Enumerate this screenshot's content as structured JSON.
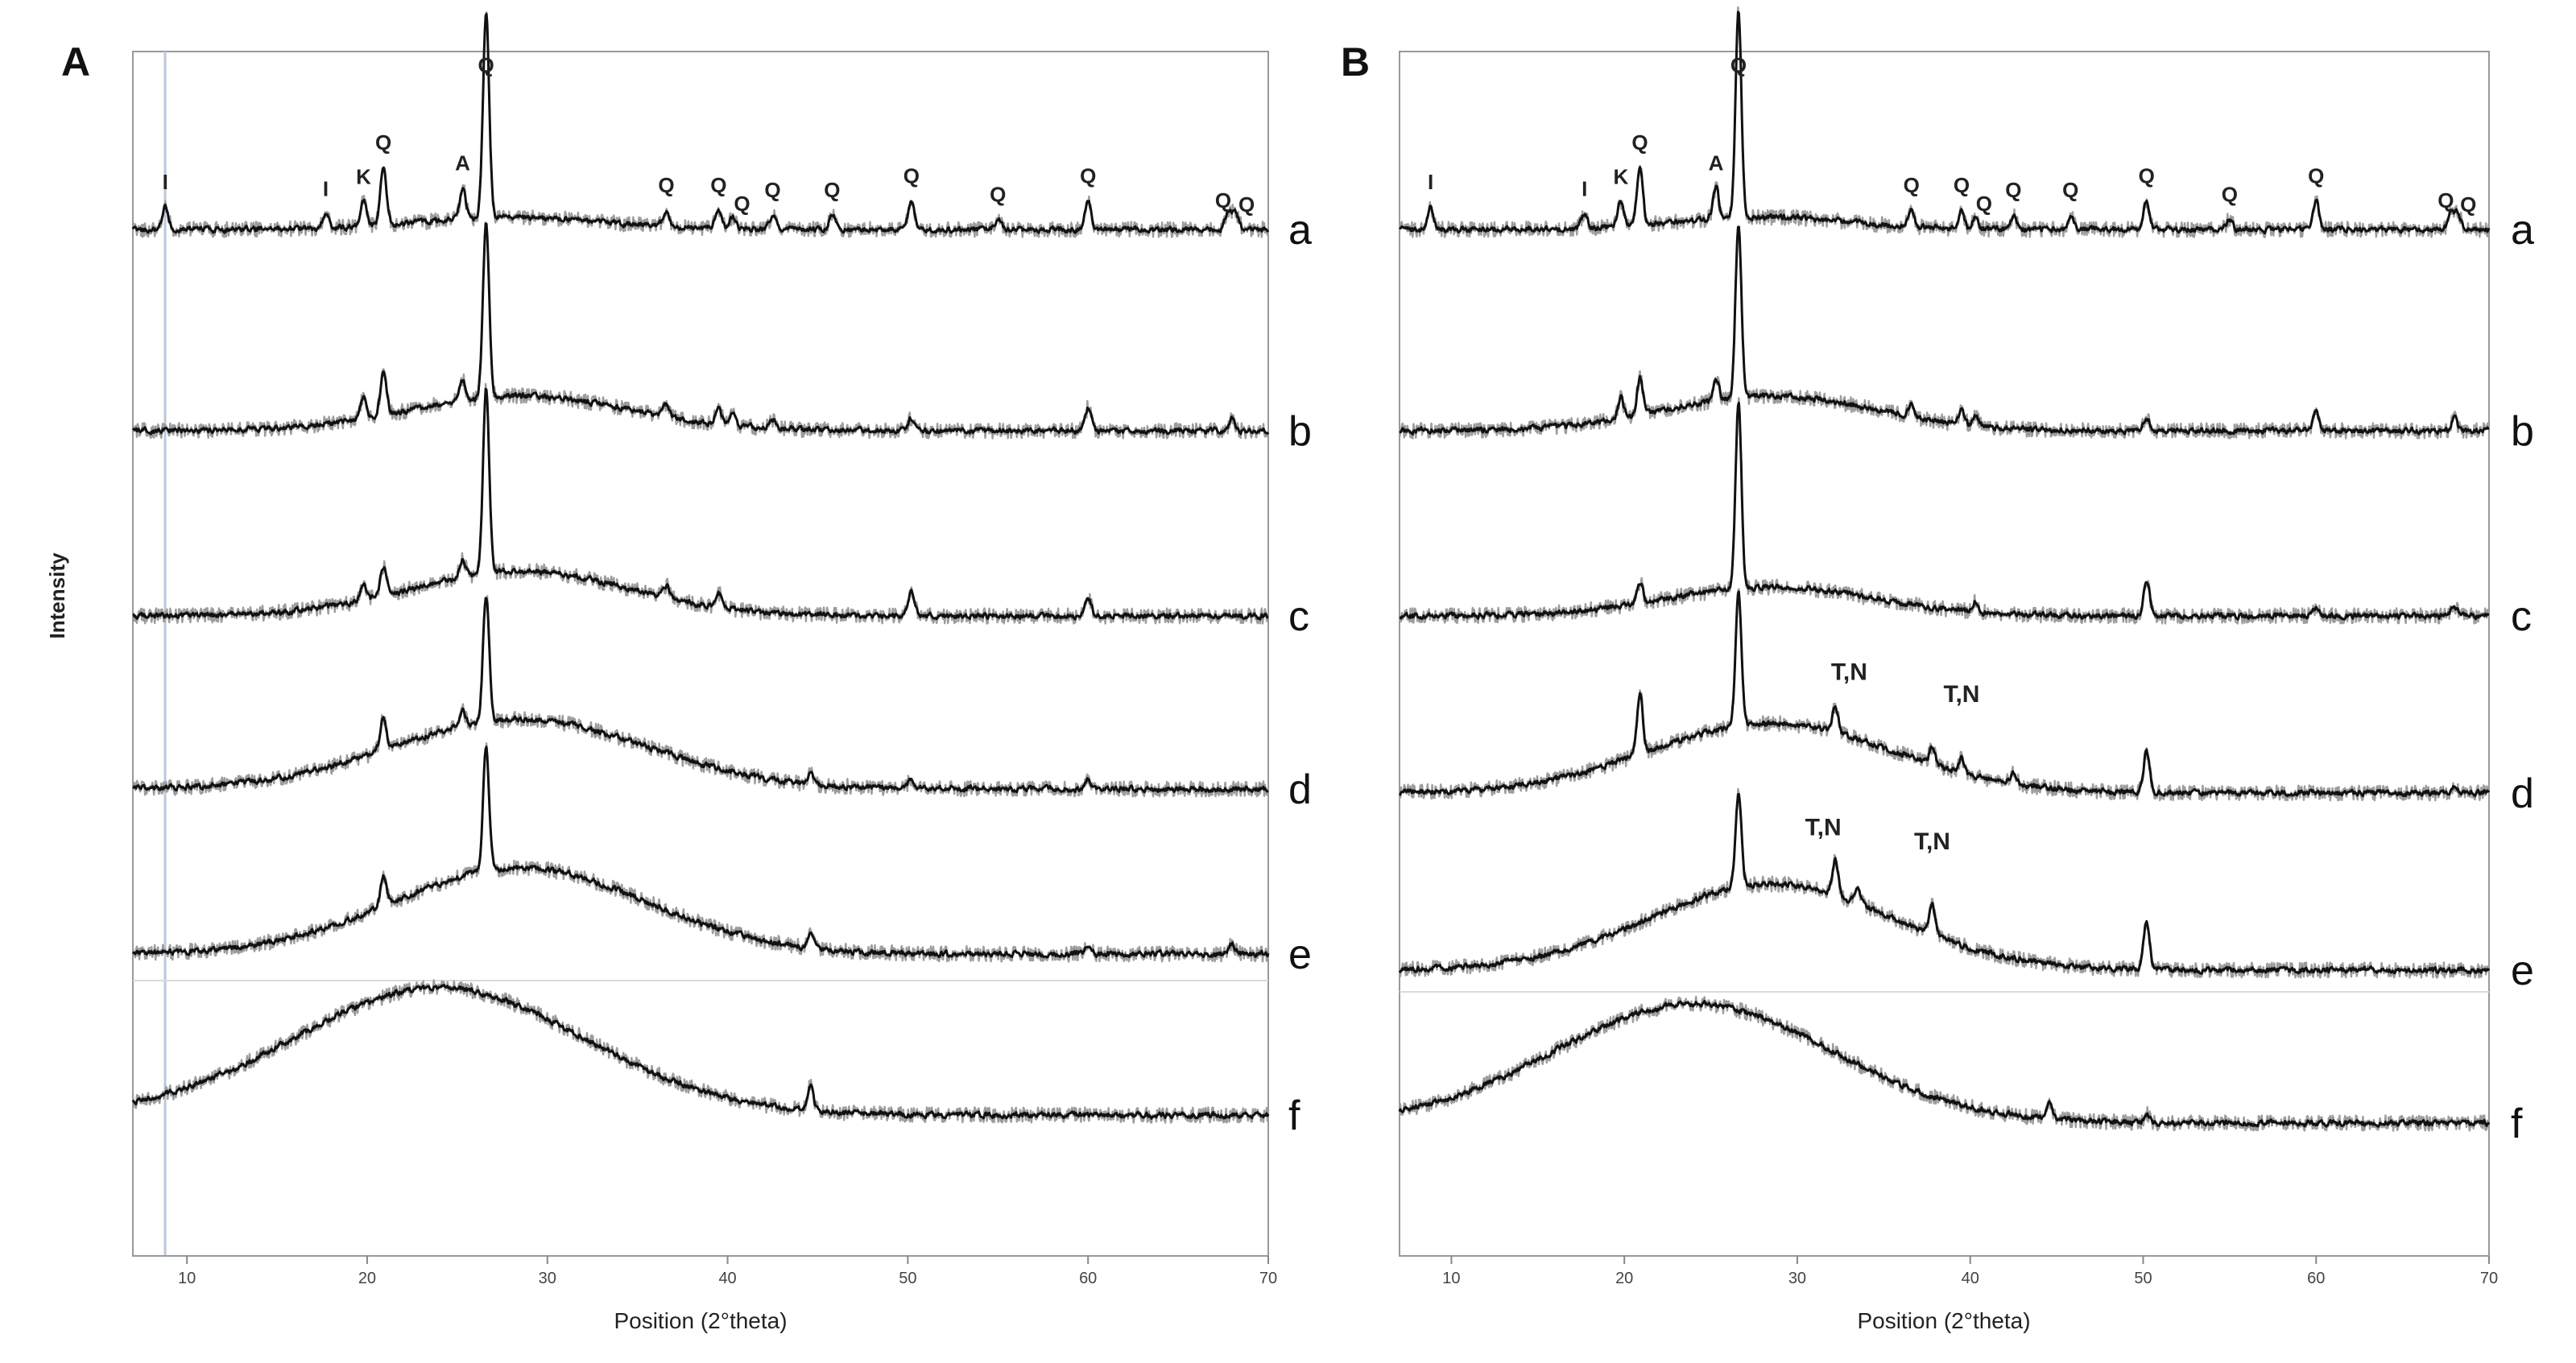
{
  "chart_data": [
    {
      "panel": "A",
      "type": "line",
      "title": "",
      "xlabel": "Position (2°theta)",
      "ylabel": "Intensity",
      "xlim": [
        7,
        70
      ],
      "xticks": [
        10,
        20,
        30,
        40,
        50,
        60,
        70
      ],
      "series": [
        {
          "name": "a",
          "baseline": 0.78,
          "hump": {
            "center": 28,
            "width": 5,
            "height": 0.06
          },
          "peaks": [
            [
              8.8,
              0.11
            ],
            [
              17.7,
              0.07
            ],
            [
              19.8,
              0.12
            ],
            [
              20.9,
              0.28
            ],
            [
              25.3,
              0.15
            ],
            [
              26.6,
              1.0
            ],
            [
              36.6,
              0.08
            ],
            [
              39.5,
              0.09
            ],
            [
              40.3,
              0.06
            ],
            [
              42.5,
              0.07
            ],
            [
              45.8,
              0.07
            ],
            [
              50.2,
              0.14
            ],
            [
              55.0,
              0.05
            ],
            [
              60.0,
              0.14
            ],
            [
              67.8,
              0.09
            ],
            [
              68.2,
              0.08
            ]
          ]
        },
        {
          "name": "b",
          "baseline": 0.52,
          "hump": {
            "center": 28.5,
            "width": 6,
            "height": 0.17
          },
          "peaks": [
            [
              19.8,
              0.1
            ],
            [
              20.9,
              0.2
            ],
            [
              25.3,
              0.1
            ],
            [
              26.6,
              0.85
            ],
            [
              36.6,
              0.06
            ],
            [
              39.5,
              0.08
            ],
            [
              40.3,
              0.05
            ],
            [
              42.5,
              0.04
            ],
            [
              50.2,
              0.06
            ],
            [
              60.0,
              0.11
            ],
            [
              68.0,
              0.06
            ]
          ]
        },
        {
          "name": "c",
          "baseline": 0.52,
          "hump": {
            "center": 28.5,
            "width": 6,
            "height": 0.22
          },
          "peaks": [
            [
              19.8,
              0.08
            ],
            [
              20.9,
              0.14
            ],
            [
              25.3,
              0.08
            ],
            [
              26.6,
              0.9
            ],
            [
              36.6,
              0.06
            ],
            [
              39.5,
              0.07
            ],
            [
              50.2,
              0.12
            ],
            [
              60.0,
              0.09
            ]
          ]
        },
        {
          "name": "d",
          "baseline": 0.5,
          "hump": {
            "center": 28.5,
            "width": 7,
            "height": 0.34
          },
          "peaks": [
            [
              20.9,
              0.16
            ],
            [
              25.3,
              0.07
            ],
            [
              26.6,
              0.62
            ],
            [
              44.6,
              0.05
            ],
            [
              50.2,
              0.05
            ],
            [
              60.0,
              0.04
            ]
          ]
        },
        {
          "name": "e",
          "baseline": 0.5,
          "hump": {
            "center": 28.5,
            "width": 7,
            "height": 0.42
          },
          "peaks": [
            [
              20.9,
              0.14
            ],
            [
              26.6,
              0.6
            ],
            [
              44.6,
              0.06
            ],
            [
              60.0,
              0.04
            ],
            [
              68.0,
              0.05
            ]
          ]
        },
        {
          "name": "f",
          "baseline": 0.5,
          "hump": {
            "center": 24,
            "width": 8,
            "height": 0.62
          },
          "peaks": [
            [
              44.6,
              0.12
            ]
          ]
        }
      ],
      "annotations": [
        {
          "text": "I",
          "x": 8.8,
          "series": "a"
        },
        {
          "text": "I",
          "x": 17.7,
          "series": "a"
        },
        {
          "text": "K",
          "x": 19.8,
          "series": "a"
        },
        {
          "text": "Q",
          "x": 20.9,
          "series": "a"
        },
        {
          "text": "A",
          "x": 25.3,
          "series": "a"
        },
        {
          "text": "Q",
          "x": 26.6,
          "series": "a"
        },
        {
          "text": "Q",
          "x": 36.6,
          "series": "a"
        },
        {
          "text": "Q",
          "x": 39.5,
          "series": "a"
        },
        {
          "text": "Q",
          "x": 40.8,
          "series": "a"
        },
        {
          "text": "Q",
          "x": 42.5,
          "series": "a"
        },
        {
          "text": "Q",
          "x": 45.8,
          "series": "a"
        },
        {
          "text": "Q",
          "x": 50.2,
          "series": "a"
        },
        {
          "text": "Q",
          "x": 55.0,
          "series": "a"
        },
        {
          "text": "Q",
          "x": 60.0,
          "series": "a"
        },
        {
          "text": "Q",
          "x": 67.5,
          "series": "a"
        },
        {
          "text": "Q",
          "x": 68.8,
          "series": "a"
        }
      ]
    },
    {
      "panel": "B",
      "type": "line",
      "title": "",
      "xlabel": "Position (2°theta)",
      "ylabel": "",
      "xlim": [
        7,
        70
      ],
      "xticks": [
        10,
        20,
        30,
        40,
        50,
        60,
        70
      ],
      "series": [
        {
          "name": "a",
          "baseline": 0.78,
          "hump": {
            "center": 28,
            "width": 5,
            "height": 0.06
          },
          "peaks": [
            [
              8.8,
              0.11
            ],
            [
              17.7,
              0.07
            ],
            [
              19.8,
              0.12
            ],
            [
              20.9,
              0.28
            ],
            [
              25.3,
              0.15
            ],
            [
              26.6,
              1.0
            ],
            [
              36.6,
              0.08
            ],
            [
              39.5,
              0.09
            ],
            [
              40.3,
              0.06
            ],
            [
              42.5,
              0.07
            ],
            [
              45.8,
              0.07
            ],
            [
              50.2,
              0.14
            ],
            [
              55.0,
              0.05
            ],
            [
              60.0,
              0.14
            ],
            [
              67.8,
              0.09
            ],
            [
              68.2,
              0.08
            ]
          ]
        },
        {
          "name": "b",
          "baseline": 0.52,
          "hump": {
            "center": 28.5,
            "width": 6,
            "height": 0.17
          },
          "peaks": [
            [
              19.8,
              0.1
            ],
            [
              20.9,
              0.18
            ],
            [
              25.3,
              0.1
            ],
            [
              26.6,
              0.85
            ],
            [
              36.6,
              0.06
            ],
            [
              39.5,
              0.07
            ],
            [
              40.3,
              0.05
            ],
            [
              50.2,
              0.06
            ],
            [
              60.0,
              0.1
            ],
            [
              68.0,
              0.06
            ]
          ]
        },
        {
          "name": "c",
          "baseline": 0.52,
          "hump": {
            "center": 28.5,
            "width": 6,
            "height": 0.14
          },
          "peaks": [
            [
              20.9,
              0.1
            ],
            [
              26.6,
              0.9
            ],
            [
              40.3,
              0.05
            ],
            [
              50.2,
              0.18
            ],
            [
              60.0,
              0.04
            ],
            [
              68.0,
              0.05
            ]
          ]
        },
        {
          "name": "d",
          "baseline": 0.5,
          "hump": {
            "center": 28.5,
            "width": 7,
            "height": 0.34
          },
          "peaks": [
            [
              20.9,
              0.3
            ],
            [
              26.6,
              0.65
            ],
            [
              32.2,
              0.12
            ],
            [
              37.8,
              0.08
            ],
            [
              39.5,
              0.07
            ],
            [
              42.5,
              0.05
            ],
            [
              50.2,
              0.2
            ],
            [
              68.0,
              0.04
            ]
          ]
        },
        {
          "name": "e",
          "baseline": 0.5,
          "hump": {
            "center": 28.5,
            "width": 7,
            "height": 0.42
          },
          "peaks": [
            [
              26.6,
              0.45
            ],
            [
              32.2,
              0.18
            ],
            [
              33.5,
              0.08
            ],
            [
              37.8,
              0.14
            ],
            [
              50.2,
              0.24
            ]
          ]
        },
        {
          "name": "f",
          "baseline": 0.5,
          "hump": {
            "center": 24,
            "width": 8,
            "height": 0.58
          },
          "peaks": [
            [
              44.6,
              0.08
            ],
            [
              50.2,
              0.04
            ]
          ]
        }
      ],
      "annotations": [
        {
          "text": "I",
          "x": 8.8,
          "series": "a"
        },
        {
          "text": "I",
          "x": 17.7,
          "series": "a"
        },
        {
          "text": "K",
          "x": 19.8,
          "series": "a"
        },
        {
          "text": "Q",
          "x": 20.9,
          "series": "a"
        },
        {
          "text": "A",
          "x": 25.3,
          "series": "a"
        },
        {
          "text": "Q",
          "x": 26.6,
          "series": "a"
        },
        {
          "text": "Q",
          "x": 36.6,
          "series": "a"
        },
        {
          "text": "Q",
          "x": 39.5,
          "series": "a"
        },
        {
          "text": "Q",
          "x": 40.8,
          "series": "a"
        },
        {
          "text": "Q",
          "x": 42.5,
          "series": "a"
        },
        {
          "text": "Q",
          "x": 45.8,
          "series": "a"
        },
        {
          "text": "Q",
          "x": 50.2,
          "series": "a"
        },
        {
          "text": "Q",
          "x": 55.0,
          "series": "a"
        },
        {
          "text": "Q",
          "x": 60.0,
          "series": "a"
        },
        {
          "text": "Q",
          "x": 67.5,
          "series": "a"
        },
        {
          "text": "Q",
          "x": 68.8,
          "series": "a"
        },
        {
          "text": "T,N",
          "x": 33.0,
          "series": "d"
        },
        {
          "text": "T,N",
          "x": 39.5,
          "series": "d"
        },
        {
          "text": "T,N",
          "x": 31.5,
          "series": "e"
        },
        {
          "text": "T,N",
          "x": 37.8,
          "series": "e"
        }
      ]
    }
  ]
}
